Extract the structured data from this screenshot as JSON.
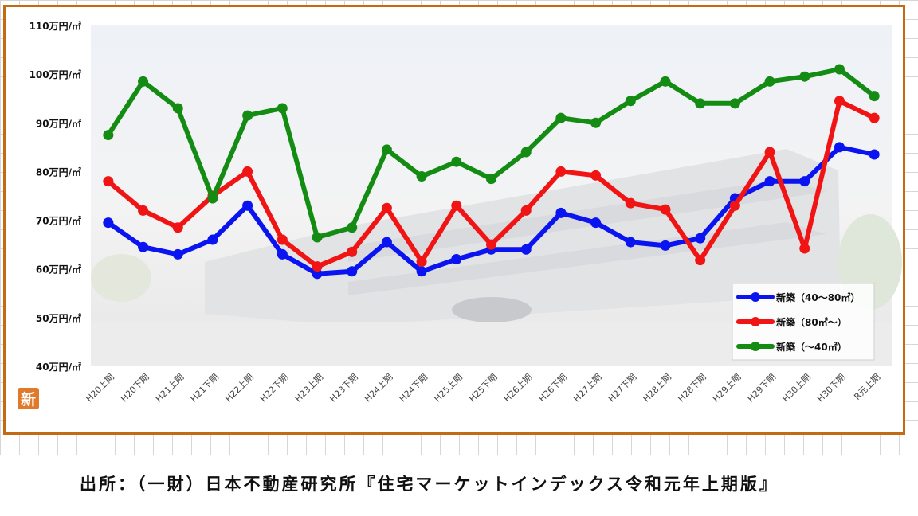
{
  "chart_data": {
    "type": "line",
    "categories": [
      "H20上期",
      "H20下期",
      "H21上期",
      "H21下期",
      "H22上期",
      "H22下期",
      "H23上期",
      "H23下期",
      "H24上期",
      "H24下期",
      "H25上期",
      "H25下期",
      "H26上期",
      "H26下期",
      "H27上期",
      "H27下期",
      "H28上期",
      "H28下期",
      "H29上期",
      "H29下期",
      "H30上期",
      "H30下期",
      "R元上期"
    ],
    "series": [
      {
        "name": "新築（40～80㎡）",
        "color": "#0a14f0",
        "values": [
          69.5,
          64.5,
          63,
          66,
          73,
          63,
          59,
          59.5,
          65.5,
          59.5,
          62,
          64,
          64,
          71.5,
          69.5,
          65.5,
          64.8,
          66.3,
          74.5,
          78,
          78,
          85,
          83.5
        ]
      },
      {
        "name": "新築（80㎡～）",
        "color": "#f01414",
        "values": [
          78,
          72,
          68.5,
          75,
          80,
          66,
          60.5,
          63.5,
          72.5,
          61.5,
          73,
          65,
          72,
          80,
          79.2,
          73.5,
          72.2,
          61.8,
          73,
          84,
          64.2,
          94.5,
          91
        ]
      },
      {
        "name": "新築（～40㎡）",
        "color": "#148c14",
        "values": [
          87.5,
          98.5,
          93,
          74.5,
          91.5,
          93,
          66.5,
          68.5,
          84.5,
          79,
          82,
          78.5,
          84,
          91,
          90,
          94.5,
          98.5,
          94,
          94,
          98.5,
          99.5,
          101,
          95.5
        ]
      }
    ],
    "ylim": [
      40,
      110
    ],
    "yticks": [
      40,
      50,
      60,
      70,
      80,
      90,
      100,
      110
    ],
    "ytick_labels": [
      "40万円/㎡",
      "50万円/㎡",
      "60万円/㎡",
      "70万円/㎡",
      "80万円/㎡",
      "90万円/㎡",
      "100万円/㎡",
      "110万円/㎡"
    ],
    "legend_position": "bottom-right",
    "grid": false,
    "title": "",
    "xlabel": "",
    "ylabel": ""
  },
  "badge": {
    "text": "新",
    "color": "#e07a2a"
  },
  "source": "出所：（一財）日本不動産研究所『住宅マーケットインデックス令和元年上期版』",
  "frame_color": "#c46a12"
}
